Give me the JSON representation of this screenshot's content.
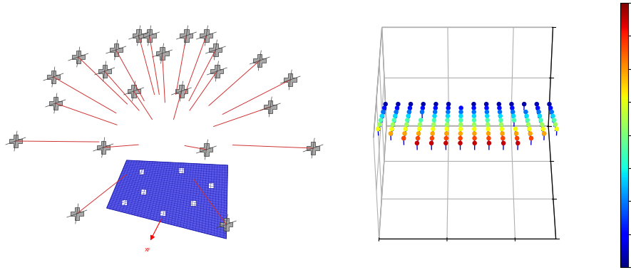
{
  "diagram": {
    "axis_label": "XF"
  },
  "chart_data": {
    "type": "scatter3d",
    "x": [
      0,
      1,
      2,
      3,
      4,
      5,
      6,
      7,
      8,
      9,
      10,
      11,
      12,
      13
    ],
    "y": [
      0,
      1,
      2,
      3,
      4,
      5,
      6,
      7,
      8,
      9
    ],
    "z": [
      [
        null,
        null,
        null,
        0.95,
        0.95,
        0.95,
        0.95,
        0.95,
        0.95,
        0.95,
        0.95,
        null,
        null,
        null
      ],
      [
        null,
        null,
        0.87,
        0.87,
        0.87,
        0.87,
        0.87,
        0.87,
        0.87,
        0.87,
        0.87,
        0.87,
        null,
        null
      ],
      [
        null,
        0.79,
        0.79,
        0.79,
        0.79,
        0.79,
        0.79,
        0.79,
        0.79,
        0.79,
        0.79,
        0.79,
        0.79,
        null
      ],
      [
        0.71,
        0.71,
        0.71,
        0.71,
        0.71,
        0.71,
        0.71,
        0.71,
        0.71,
        0.71,
        0.71,
        0.71,
        0.71,
        0.71
      ],
      [
        0.63,
        0.63,
        0.63,
        0.63,
        0.63,
        0.63,
        0.63,
        0.63,
        0.63,
        0.63,
        null,
        0.63,
        0.63,
        0.63
      ],
      [
        0.55,
        0.55,
        0.55,
        0.55,
        0.55,
        0.55,
        0.55,
        0.55,
        0.55,
        0.55,
        0.55,
        0.55,
        0.55,
        0.55
      ],
      [
        0.47,
        0.47,
        0.47,
        null,
        0.47,
        0.47,
        0.47,
        0.47,
        0.47,
        0.47,
        0.47,
        0.47,
        0.47,
        0.47
      ],
      [
        0.39,
        0.39,
        0.39,
        0.39,
        0.39,
        0.39,
        0.39,
        0.39,
        0.39,
        0.39,
        0.39,
        0.39,
        0.39,
        0.39
      ],
      [
        0.31,
        0.31,
        0.31,
        0.31,
        0.31,
        0.31,
        0.31,
        0.31,
        0.31,
        0.31,
        0.31,
        null,
        0.31,
        0.31
      ],
      [
        0.23,
        0.23,
        0.23,
        0.23,
        0.23,
        0.23,
        null,
        0.23,
        0.23,
        0.23,
        0.23,
        0.23,
        0.23,
        0.23
      ]
    ],
    "xlim": [
      0,
      13
    ],
    "ylim": [
      0,
      9
    ],
    "zlim": [
      0,
      1
    ],
    "xticks": [
      0,
      5,
      10
    ],
    "yticks": [
      0,
      3,
      6,
      9
    ],
    "zticks": [
      0,
      0.5,
      1
    ],
    "tick_labels": false,
    "colorbar": {
      "range": [
        0.2,
        1.0
      ],
      "ticks": [
        0.2,
        0.3,
        0.4,
        0.5,
        0.6,
        0.7,
        0.8,
        0.9,
        1.0
      ]
    }
  }
}
